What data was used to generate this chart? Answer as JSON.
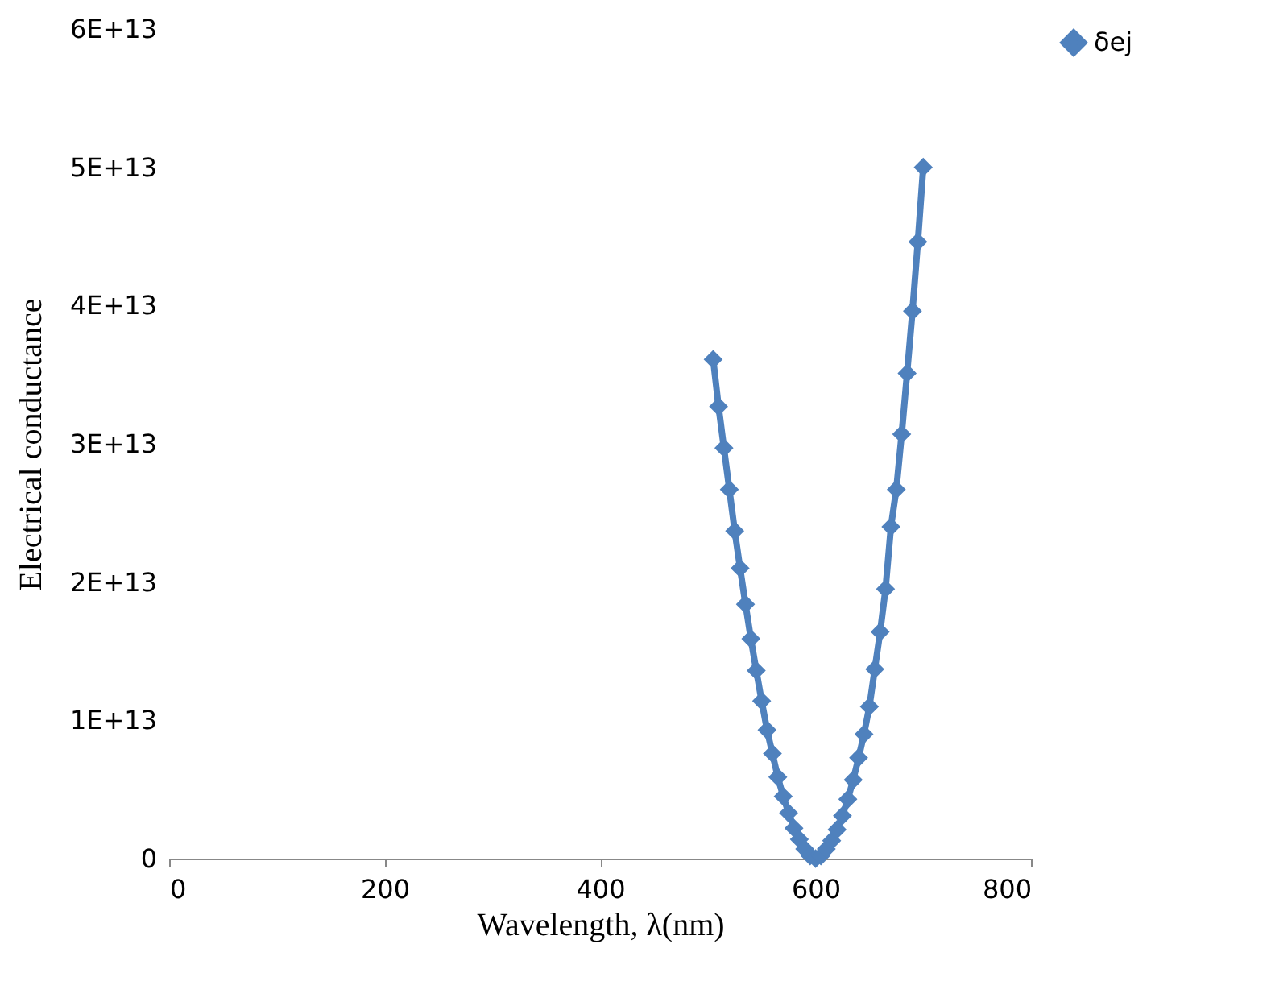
{
  "chart_data": {
    "type": "line",
    "xlabel": "Wavelength, λ(nm)",
    "ylabel": "Electrical conductance",
    "x": [
      505,
      510,
      515,
      520,
      525,
      530,
      535,
      540,
      545,
      550,
      555,
      560,
      565,
      570,
      575,
      580,
      585,
      590,
      595,
      600,
      605,
      610,
      615,
      620,
      625,
      630,
      635,
      640,
      645,
      650,
      655,
      660,
      665,
      670,
      675,
      680,
      685,
      690,
      695,
      700
    ],
    "series": [
      {
        "name": "δej",
        "color": "#4f81bd",
        "values": [
          36100000000000.0,
          32700000000000.0,
          29700000000000.0,
          26700000000000.0,
          23700000000000.0,
          21000000000000.0,
          18400000000000.0,
          15900000000000.0,
          13600000000000.0,
          11400000000000.0,
          9300000000000.0,
          7600000000000.0,
          5900000000000.0,
          4500000000000.0,
          3300000000000.0,
          2200000000000.0,
          1400000000000.0,
          700000000000.0,
          200000000000.0,
          0,
          200000000000.0,
          700000000000.0,
          1300000000000.0,
          2100000000000.0,
          3100000000000.0,
          4300000000000.0,
          5700000000000.0,
          7300000000000.0,
          9000000000000.0,
          11000000000000.0,
          13700000000000.0,
          16400000000000.0,
          19500000000000.0,
          24000000000000.0,
          26700000000000.0,
          30700000000000.0,
          35100000000000.0,
          39600000000000.0,
          44600000000000.0,
          50000000000000.0
        ]
      }
    ],
    "xlim": [
      0,
      800
    ],
    "xticks": [
      0,
      200,
      400,
      600,
      800
    ],
    "ylim": [
      0,
      60000000000000.0
    ],
    "yticks": [
      0,
      {
        "value": 10000000000000.0,
        "label": "1E+13"
      },
      {
        "value": 20000000000000.0,
        "label": "2E+13"
      },
      {
        "value": 30000000000000.0,
        "label": "3E+13"
      },
      {
        "value": 40000000000000.0,
        "label": "4E+13"
      },
      {
        "value": 50000000000000.0,
        "label": "5E+13"
      },
      {
        "value": 60000000000000.0,
        "label": "6E+13"
      }
    ],
    "marker": "diamond",
    "line_style": "solid",
    "legend": "top right",
    "grid": false
  }
}
